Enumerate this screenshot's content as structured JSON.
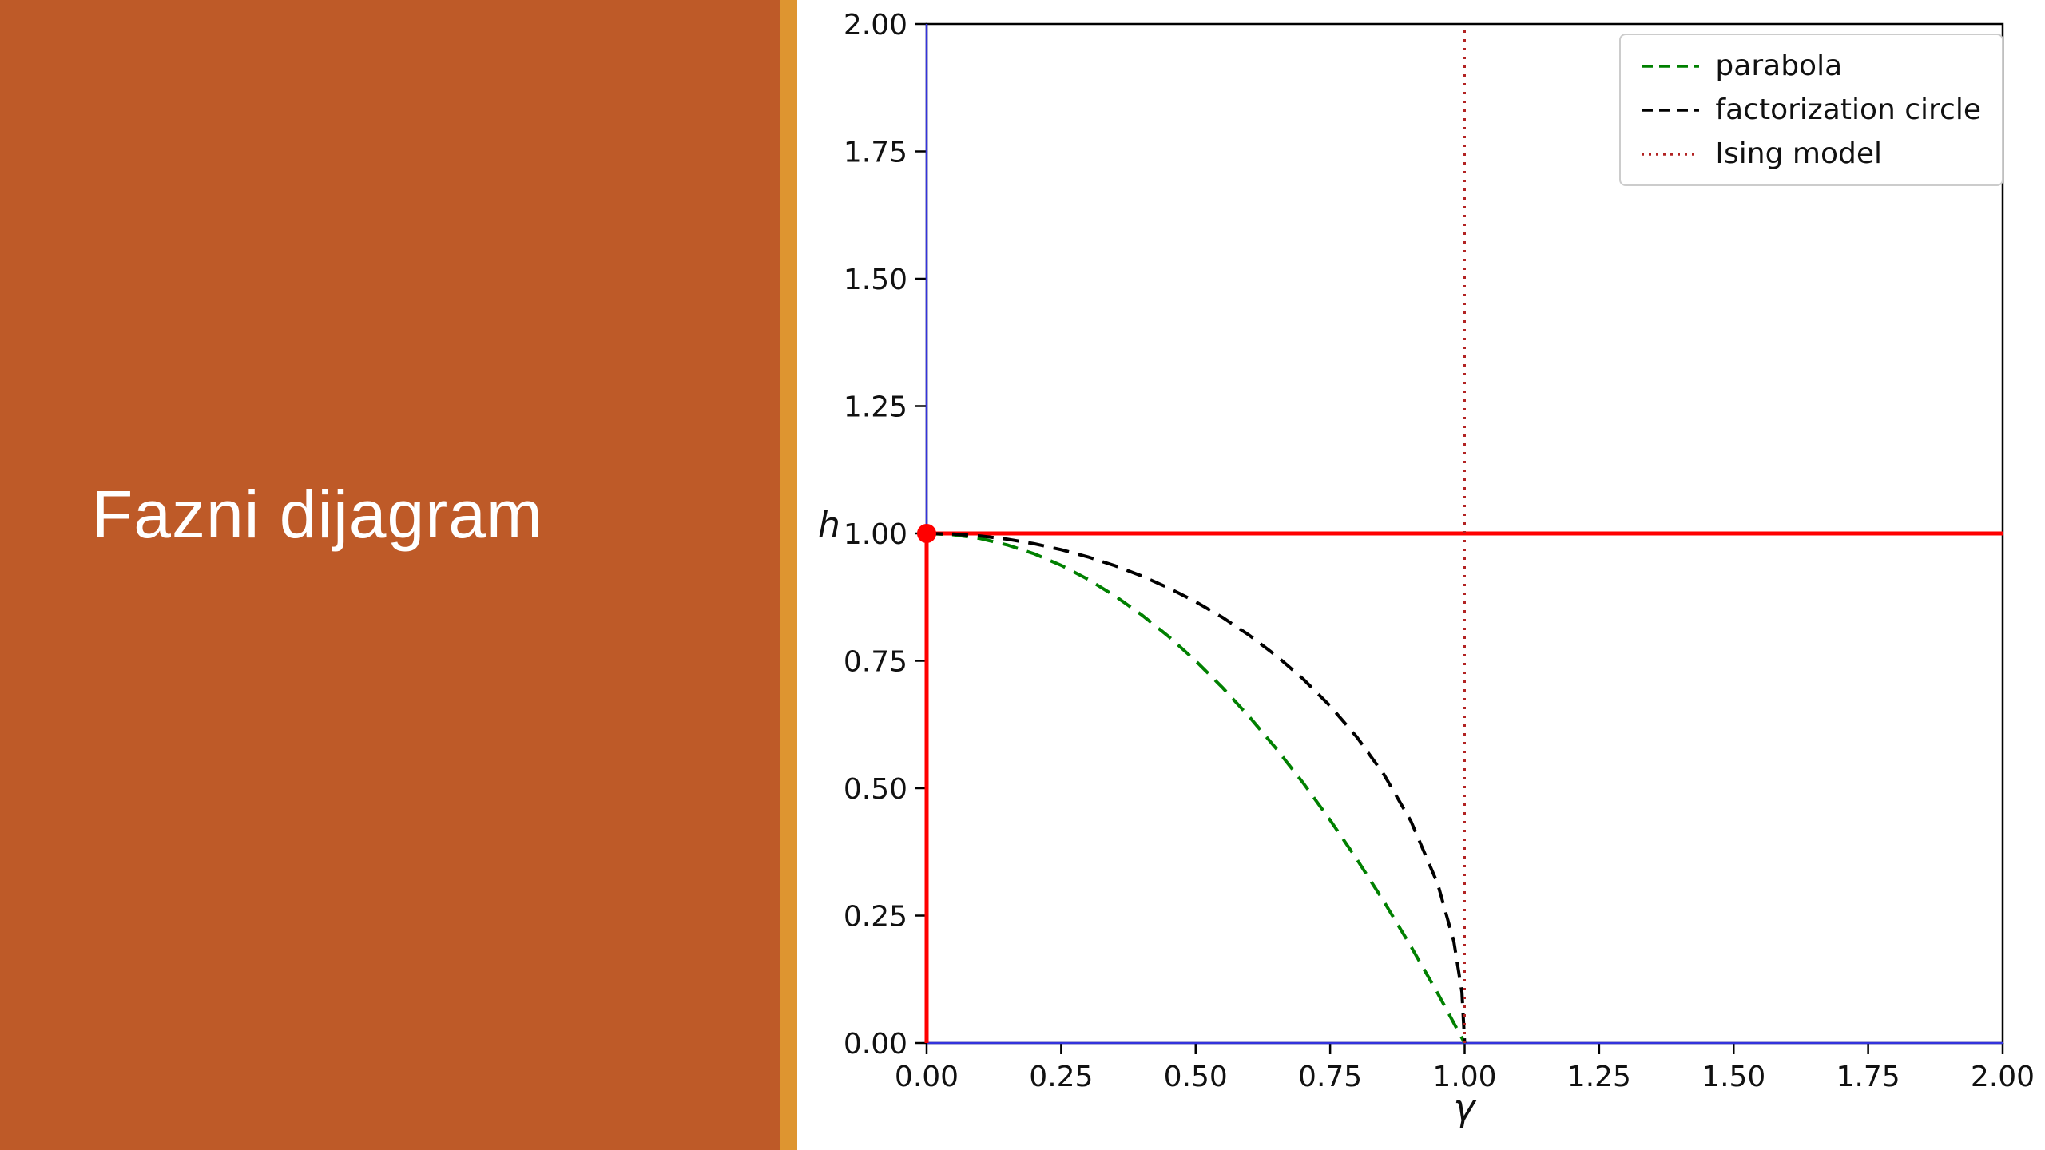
{
  "slide": {
    "title": "Fazni dijagram",
    "panel_color": "#BE5A28",
    "stripe_color": "#DE9530",
    "title_color": "#FFFFFF",
    "background_color": "#FFFFFF"
  },
  "chart_data": {
    "type": "line",
    "title": "",
    "xlabel": "γ",
    "ylabel": "h",
    "xlim": [
      0,
      2
    ],
    "ylim": [
      0,
      2
    ],
    "grid": false,
    "legend_position": "upper right",
    "xticks": [
      0,
      0.25,
      0.5,
      0.75,
      1,
      1.25,
      1.5,
      1.75,
      2
    ],
    "xtick_labels": [
      "0.00",
      "0.25",
      "0.50",
      "0.75",
      "1.00",
      "1.25",
      "1.50",
      "1.75",
      "2.00"
    ],
    "yticks": [
      0,
      0.25,
      0.5,
      0.75,
      1,
      1.25,
      1.5,
      1.75,
      2
    ],
    "ytick_labels": [
      "0.00",
      "0.25",
      "0.50",
      "0.75",
      "1.00",
      "1.25",
      "1.50",
      "1.75",
      "2.00"
    ],
    "series": [
      {
        "name": "parabola",
        "color": "#008000",
        "style": "dashed",
        "width": 4,
        "x": [
          0,
          0.05,
          0.1,
          0.15,
          0.2,
          0.25,
          0.3,
          0.35,
          0.4,
          0.45,
          0.5,
          0.55,
          0.6,
          0.65,
          0.7,
          0.75,
          0.8,
          0.85,
          0.9,
          0.95,
          1.0
        ],
        "y": [
          1,
          0.9975,
          0.99,
          0.9775,
          0.96,
          0.9375,
          0.91,
          0.8775,
          0.84,
          0.7975,
          0.75,
          0.6975,
          0.64,
          0.5775,
          0.51,
          0.4375,
          0.36,
          0.2775,
          0.19,
          0.0975,
          0
        ]
      },
      {
        "name": "factorization circle",
        "color": "#000000",
        "style": "dashed",
        "width": 4,
        "x": [
          0,
          0.05,
          0.1,
          0.15,
          0.2,
          0.25,
          0.3,
          0.35,
          0.4,
          0.45,
          0.5,
          0.55,
          0.6,
          0.65,
          0.7,
          0.75,
          0.8,
          0.85,
          0.9,
          0.95,
          0.98,
          0.995,
          1.0
        ],
        "y": [
          1,
          0.9987,
          0.995,
          0.9887,
          0.9798,
          0.9682,
          0.9539,
          0.9367,
          0.9165,
          0.893,
          0.866,
          0.8352,
          0.8,
          0.7599,
          0.7141,
          0.6614,
          0.6,
          0.5268,
          0.4359,
          0.3122,
          0.199,
          0.0999,
          0
        ]
      },
      {
        "name": "Ising model",
        "color": "#B22222",
        "style": "dotted",
        "width": 3,
        "orientation": "vertical",
        "x_value": 1.0,
        "y_span": [
          0,
          2
        ]
      }
    ],
    "reference_lines": [
      {
        "name": "blue-vertical-axis-line",
        "orientation": "vertical",
        "value": 0,
        "span": [
          0,
          2
        ],
        "color": "#3333DD",
        "width": 2.5
      },
      {
        "name": "blue-horizontal-axis-line",
        "orientation": "horizontal",
        "value": 0,
        "span": [
          0,
          2
        ],
        "color": "#3333DD",
        "width": 2.5
      },
      {
        "name": "red-horizontal-line",
        "orientation": "horizontal",
        "value": 1,
        "span": [
          0,
          2
        ],
        "color": "#FF0000",
        "width": 5
      },
      {
        "name": "red-vertical-segment",
        "orientation": "vertical",
        "value": 0,
        "span": [
          0,
          1
        ],
        "color": "#FF0000",
        "width": 5
      }
    ],
    "markers": [
      {
        "name": "critical-point",
        "x": 0,
        "y": 1,
        "color": "#FF0000",
        "size": 12
      }
    ]
  }
}
